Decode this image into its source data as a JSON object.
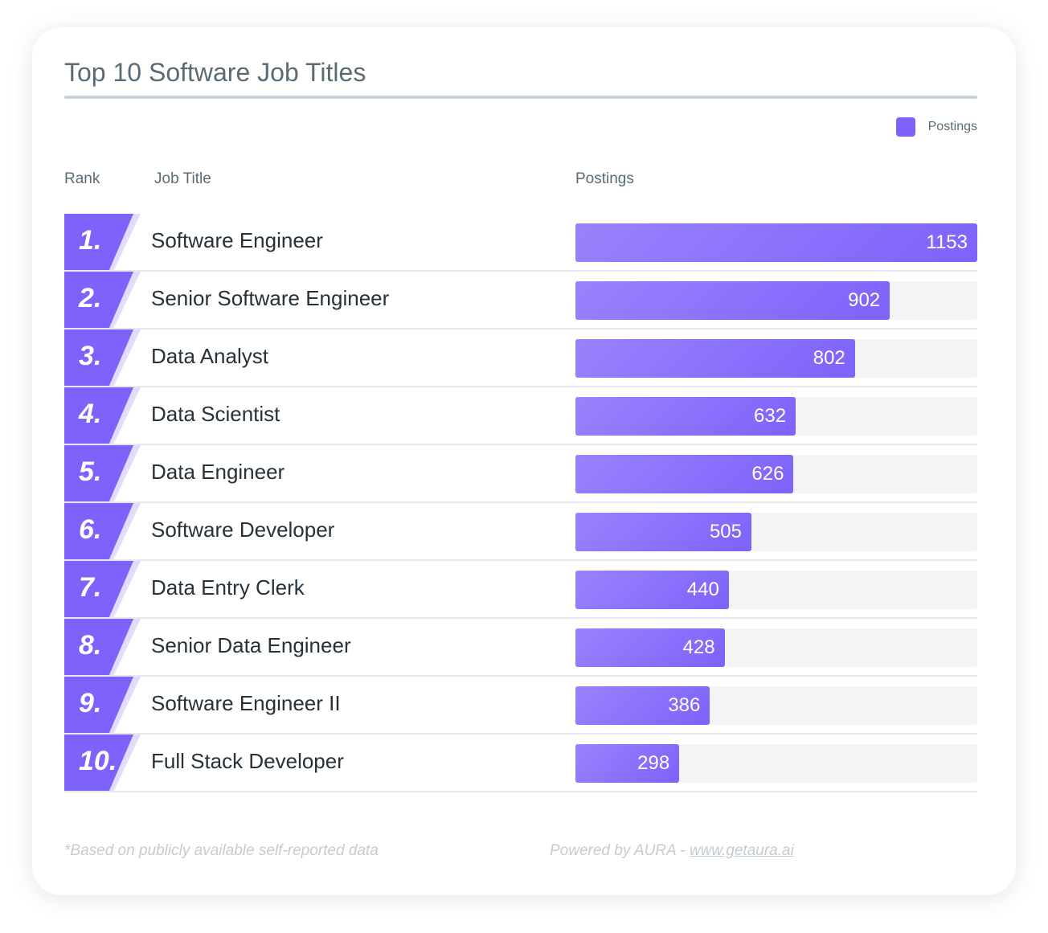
{
  "chart_data": {
    "type": "bar",
    "title": "Top 10 Software Job Titles",
    "legend": {
      "label": "Postings",
      "color": "#7e62fb",
      "position": "top-right"
    },
    "columns": {
      "rank": "Rank",
      "job_title": "Job Title",
      "postings": "Postings"
    },
    "xlim": [
      0,
      1153
    ],
    "rows": [
      {
        "rank": "1.",
        "title": "Software Engineer",
        "value": 1153
      },
      {
        "rank": "2.",
        "title": "Senior Software Engineer",
        "value": 902
      },
      {
        "rank": "3.",
        "title": "Data Analyst",
        "value": 802
      },
      {
        "rank": "4.",
        "title": "Data Scientist",
        "value": 632
      },
      {
        "rank": "5.",
        "title": "Data Engineer",
        "value": 626
      },
      {
        "rank": "6.",
        "title": "Software Developer",
        "value": 505
      },
      {
        "rank": "7.",
        "title": "Data Entry Clerk",
        "value": 440
      },
      {
        "rank": "8.",
        "title": "Senior Data Engineer",
        "value": 428
      },
      {
        "rank": "9.",
        "title": "Software Engineer II",
        "value": 386
      },
      {
        "rank": "10.",
        "title": "Full Stack Developer",
        "value": 298
      }
    ]
  },
  "footer": {
    "note": "*Based on publicly available self-reported data",
    "powered": "Powered by AURA - ",
    "link": "www.getaura.ai"
  }
}
